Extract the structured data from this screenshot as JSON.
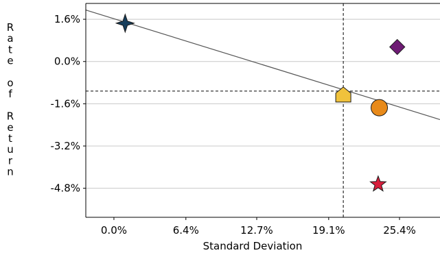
{
  "chart_data": {
    "type": "scatter",
    "title": "",
    "xlabel": "Standard Deviation",
    "ylabel": "Rate of Return",
    "xlim": [
      -2.5,
      29.0
    ],
    "ylim": [
      -5.9,
      2.2
    ],
    "x_ticks": [
      0.0,
      6.4,
      12.7,
      19.1,
      25.4
    ],
    "x_tick_labels": [
      "0.0%",
      "6.4%",
      "12.7%",
      "19.1%",
      "25.4%"
    ],
    "y_ticks": [
      1.6,
      0.0,
      -1.6,
      -3.2,
      -4.8
    ],
    "y_tick_labels": [
      "1.6%",
      "0.0%",
      "-1.6%",
      "-3.2%",
      "-4.8%"
    ],
    "grid": "horizontal",
    "legend": "none",
    "points": [
      {
        "shape": "star4",
        "x": 1.0,
        "y": 1.45,
        "color": "#163e5c"
      },
      {
        "shape": "diamond",
        "x": 25.2,
        "y": 0.55,
        "color": "#6e1b74"
      },
      {
        "shape": "pentagon",
        "x": 20.4,
        "y": -1.25,
        "color": "#f0c23c"
      },
      {
        "shape": "circle",
        "x": 23.6,
        "y": -1.75,
        "color": "#e88a1a"
      },
      {
        "shape": "star5",
        "x": 23.5,
        "y": -4.65,
        "color": "#d81e3c"
      }
    ],
    "regression_line": {
      "x": [
        -2.5,
        29.0
      ],
      "y": [
        1.95,
        -2.2
      ],
      "color": "#555555"
    },
    "crosshair": {
      "x": 20.4,
      "y": -1.12
    }
  }
}
